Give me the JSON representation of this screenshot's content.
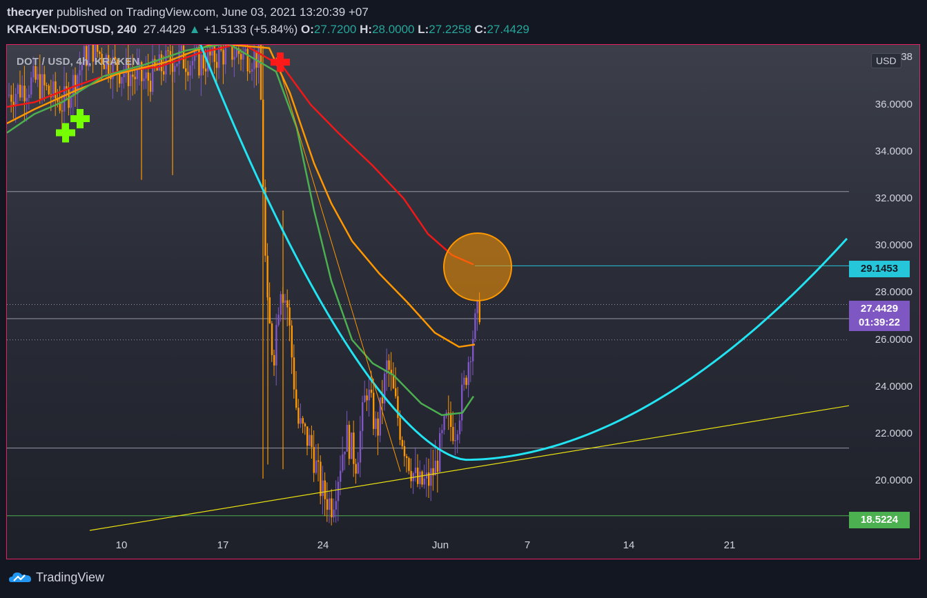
{
  "header": {
    "author": "thecryer",
    "published_text": " published on TradingView.com, June 03, 2021 13:20:39 +07",
    "symbol": "KRAKEN:DOTUSD, 240",
    "last": "27.4429",
    "arrow": "▲",
    "change": "+1.5133 (+5.84%)",
    "o_label": "O:",
    "o": "27.7200",
    "h_label": "H:",
    "h": "28.0000",
    "l_label": "L:",
    "l": "27.2258",
    "c_label": "C:",
    "c": "27.4429"
  },
  "chart": {
    "symbol_label": "DOT / USD, 4h, KRAKEN",
    "currency": "USD",
    "price_ticks": [
      "38",
      "36.0000",
      "34.0000",
      "32.0000",
      "30.0000",
      "28.0000",
      "26.0000",
      "24.0000",
      "22.0000",
      "20.0000"
    ],
    "x_ticks": [
      "10",
      "17",
      "24",
      "Jun",
      "7",
      "14",
      "21"
    ],
    "labels": {
      "cyan": "29.1453",
      "green": "18.5224",
      "last_price": "27.4429",
      "countdown": "01:39:22"
    }
  },
  "colors": {
    "frame": "#e91e63",
    "curve": "#22e3f2",
    "ema_red": "#f21818",
    "ema_orange": "#ff9800",
    "ema_green": "#4caf50",
    "trend": "#e8e010",
    "up": "#7e57c2",
    "down": "#ff9800"
  },
  "chart_data": {
    "type": "candlestick",
    "yrange": [
      17.9,
      39.3
    ],
    "price_levels": [
      32.3,
      26.9,
      21.4,
      18.5224
    ],
    "dotted_levels": [
      27.5,
      26.0
    ],
    "markers": [
      "buy-cross",
      "sell-cross"
    ]
  },
  "footer": {
    "brand": "TradingView"
  }
}
